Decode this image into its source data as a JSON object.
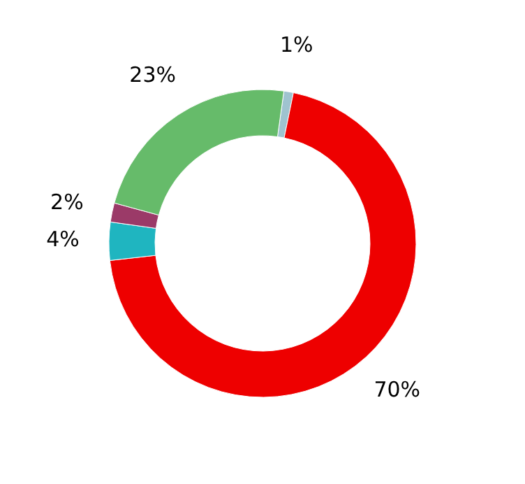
{
  "chart_data": {
    "type": "donut",
    "categories": [
      null,
      null,
      null,
      null,
      null
    ],
    "values": [
      1,
      70,
      4,
      2,
      23
    ],
    "value_labels": [
      "1%",
      "70%",
      "4%",
      "2%",
      "23%"
    ],
    "colors": [
      "#9fc3cf",
      "#ee0000",
      "#1fb5c0",
      "#9b3a68",
      "#66bb6a"
    ]
  }
}
